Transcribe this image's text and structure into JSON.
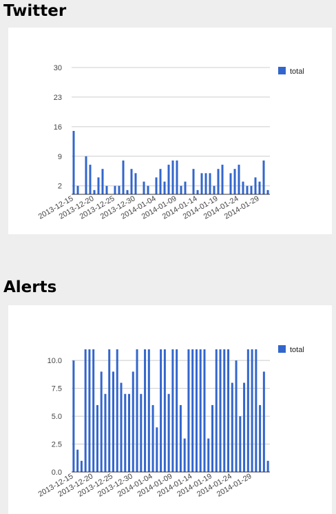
{
  "charts": {
    "twitter": {
      "heading": "Twitter"
    },
    "alerts": {
      "heading": "Alerts"
    }
  },
  "chart_data": [
    {
      "id": "twitter",
      "type": "bar",
      "title": "Twitter",
      "xlabel": "",
      "ylabel": "",
      "x_tick_labels": [
        "2013-12-15",
        "2013-12-20",
        "2013-12-25",
        "2013-12-30",
        "2014-01-04",
        "2014-01-09",
        "2014-01-14",
        "2014-01-19",
        "2014-01-24",
        "2014-01-29"
      ],
      "y_ticks": [
        2,
        9,
        16,
        23,
        30
      ],
      "y_tick_labels": [
        "2",
        "9",
        "16",
        "23",
        "30"
      ],
      "ylim": [
        0,
        30
      ],
      "grid": true,
      "legend_position": "right",
      "color": "#3366cc",
      "series": [
        {
          "name": "total",
          "values": [
            15,
            2,
            0,
            9,
            7,
            1,
            4,
            6,
            2,
            0,
            2,
            2,
            8,
            1,
            6,
            5,
            0,
            3,
            2,
            0,
            4,
            6,
            3,
            7,
            8,
            8,
            2,
            3,
            0,
            6,
            1,
            5,
            5,
            5,
            2,
            6,
            7,
            0,
            5,
            6,
            7,
            3,
            2,
            2,
            4,
            3,
            8,
            1
          ]
        }
      ]
    },
    {
      "id": "alerts",
      "type": "bar",
      "title": "Alerts",
      "xlabel": "",
      "ylabel": "",
      "x_tick_labels": [
        "2013-12-15",
        "2013-12-20",
        "2013-12-25",
        "2013-12-30",
        "2014-01-04",
        "2014-01-09",
        "2014-01-14",
        "2014-01-19",
        "2014-01-24",
        "2014-01-29"
      ],
      "y_ticks": [
        0,
        2.5,
        5,
        7.5,
        10
      ],
      "y_tick_labels": [
        "0.0",
        "2.5",
        "5.0",
        "7.5",
        "10.0"
      ],
      "ylim": [
        0,
        11
      ],
      "grid": true,
      "legend_position": "right",
      "color": "#3366cc",
      "series": [
        {
          "name": "total",
          "values": [
            10,
            2,
            1,
            11,
            11,
            11,
            6,
            9,
            7,
            11,
            9,
            11,
            8,
            7,
            7,
            9,
            11,
            7,
            11,
            11,
            6,
            4,
            11,
            11,
            7,
            11,
            11,
            6,
            3,
            11,
            11,
            11,
            11,
            11,
            3,
            6,
            11,
            11,
            11,
            11,
            8,
            10,
            5,
            8,
            11,
            11,
            11,
            6,
            9,
            1
          ]
        }
      ]
    }
  ]
}
